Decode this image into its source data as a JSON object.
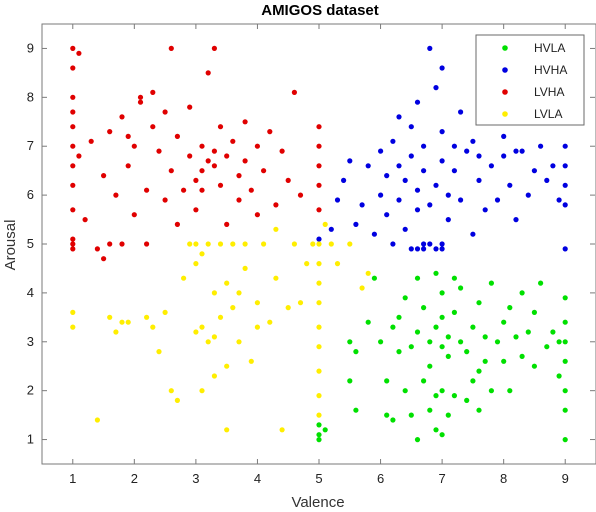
{
  "chart_data": {
    "type": "scatter",
    "title": "AMIGOS dataset",
    "xlabel": "Valence",
    "ylabel": "Arousal",
    "xlim": [
      0.5,
      9.5
    ],
    "ylim": [
      0.5,
      9.5
    ],
    "xticks": [
      "1",
      "2",
      "3",
      "4",
      "5",
      "6",
      "7",
      "8",
      "9"
    ],
    "yticks": [
      "1",
      "2",
      "3",
      "4",
      "5",
      "6",
      "7",
      "8",
      "9"
    ],
    "grid": false,
    "legend_position": "top-right",
    "series": [
      {
        "name": "HVLA",
        "color": "#00e000",
        "points": [
          [
            5.0,
            1.0
          ],
          [
            5.0,
            1.1
          ],
          [
            5.0,
            1.3
          ],
          [
            5.1,
            1.2
          ],
          [
            5.5,
            2.2
          ],
          [
            5.6,
            1.6
          ],
          [
            5.8,
            3.4
          ],
          [
            5.9,
            4.3
          ],
          [
            5.5,
            3.0
          ],
          [
            5.6,
            2.8
          ],
          [
            6.0,
            3.0
          ],
          [
            6.1,
            2.2
          ],
          [
            6.1,
            1.5
          ],
          [
            6.2,
            1.4
          ],
          [
            6.3,
            2.8
          ],
          [
            6.3,
            3.5
          ],
          [
            6.4,
            3.9
          ],
          [
            6.5,
            1.5
          ],
          [
            6.5,
            2.9
          ],
          [
            6.6,
            1.0
          ],
          [
            6.6,
            3.2
          ],
          [
            6.7,
            2.2
          ],
          [
            6.7,
            3.7
          ],
          [
            6.8,
            1.6
          ],
          [
            6.8,
            2.5
          ],
          [
            6.8,
            3.0
          ],
          [
            6.9,
            1.2
          ],
          [
            6.9,
            1.9
          ],
          [
            6.9,
            3.3
          ],
          [
            7.0,
            2.0
          ],
          [
            7.0,
            2.9
          ],
          [
            7.0,
            3.5
          ],
          [
            7.0,
            4.0
          ],
          [
            7.1,
            1.5
          ],
          [
            7.1,
            2.7
          ],
          [
            7.1,
            3.1
          ],
          [
            7.2,
            1.9
          ],
          [
            7.2,
            3.6
          ],
          [
            7.3,
            3.0
          ],
          [
            7.3,
            4.1
          ],
          [
            7.4,
            1.8
          ],
          [
            7.4,
            2.8
          ],
          [
            7.5,
            3.3
          ],
          [
            7.5,
            2.2
          ],
          [
            7.6,
            3.8
          ],
          [
            7.6,
            1.6
          ],
          [
            7.7,
            2.6
          ],
          [
            7.7,
            3.1
          ],
          [
            7.8,
            4.2
          ],
          [
            7.8,
            2.0
          ],
          [
            7.9,
            3.0
          ],
          [
            8.0,
            2.6
          ],
          [
            8.0,
            3.4
          ],
          [
            8.1,
            2.0
          ],
          [
            8.1,
            3.7
          ],
          [
            8.2,
            3.1
          ],
          [
            8.3,
            2.7
          ],
          [
            8.3,
            4.0
          ],
          [
            8.4,
            3.2
          ],
          [
            8.5,
            2.5
          ],
          [
            8.5,
            3.6
          ],
          [
            8.6,
            4.2
          ],
          [
            8.7,
            2.9
          ],
          [
            8.8,
            3.2
          ],
          [
            8.9,
            3.0
          ],
          [
            8.9,
            2.3
          ],
          [
            9.0,
            1.0
          ],
          [
            9.0,
            1.6
          ],
          [
            9.0,
            2.0
          ],
          [
            9.0,
            2.6
          ],
          [
            9.0,
            3.0
          ],
          [
            9.0,
            3.4
          ],
          [
            9.0,
            3.9
          ],
          [
            6.2,
            3.3
          ],
          [
            6.6,
            4.3
          ],
          [
            6.9,
            4.4
          ],
          [
            7.2,
            4.3
          ],
          [
            6.4,
            2.0
          ],
          [
            7.0,
            1.1
          ],
          [
            7.6,
            2.4
          ]
        ]
      },
      {
        "name": "HVHA",
        "color": "#0000e0",
        "points": [
          [
            5.0,
            5.1
          ],
          [
            5.2,
            5.3
          ],
          [
            5.3,
            5.9
          ],
          [
            5.4,
            6.3
          ],
          [
            5.5,
            6.7
          ],
          [
            5.6,
            5.4
          ],
          [
            5.7,
            5.8
          ],
          [
            5.8,
            6.6
          ],
          [
            5.9,
            5.2
          ],
          [
            6.0,
            6.0
          ],
          [
            6.0,
            6.9
          ],
          [
            6.1,
            5.6
          ],
          [
            6.1,
            6.4
          ],
          [
            6.2,
            5.0
          ],
          [
            6.2,
            7.1
          ],
          [
            6.3,
            5.9
          ],
          [
            6.3,
            7.6
          ],
          [
            6.4,
            6.3
          ],
          [
            6.4,
            5.3
          ],
          [
            6.5,
            6.8
          ],
          [
            6.5,
            7.4
          ],
          [
            6.6,
            5.7
          ],
          [
            6.6,
            6.1
          ],
          [
            6.7,
            5.0
          ],
          [
            6.7,
            7.0
          ],
          [
            6.7,
            6.5
          ],
          [
            6.8,
            5.0
          ],
          [
            6.8,
            5.8
          ],
          [
            6.8,
            9.0
          ],
          [
            6.9,
            4.9
          ],
          [
            6.9,
            6.2
          ],
          [
            6.9,
            8.2
          ],
          [
            7.0,
            5.0
          ],
          [
            7.0,
            6.7
          ],
          [
            7.0,
            8.6
          ],
          [
            7.0,
            7.3
          ],
          [
            7.1,
            5.5
          ],
          [
            7.1,
            6.0
          ],
          [
            7.2,
            6.5
          ],
          [
            7.3,
            7.7
          ],
          [
            7.3,
            5.9
          ],
          [
            7.4,
            6.9
          ],
          [
            7.5,
            5.2
          ],
          [
            7.5,
            7.1
          ],
          [
            7.6,
            6.3
          ],
          [
            7.7,
            5.7
          ],
          [
            7.7,
            7.5
          ],
          [
            7.8,
            6.6
          ],
          [
            7.9,
            5.9
          ],
          [
            8.0,
            6.8
          ],
          [
            8.0,
            7.2
          ],
          [
            8.1,
            6.2
          ],
          [
            8.2,
            5.5
          ],
          [
            8.3,
            6.9
          ],
          [
            8.4,
            6.0
          ],
          [
            8.5,
            6.5
          ],
          [
            8.6,
            7.0
          ],
          [
            8.7,
            6.3
          ],
          [
            8.8,
            6.6
          ],
          [
            9.0,
            4.9
          ],
          [
            9.0,
            5.8
          ],
          [
            9.0,
            6.2
          ],
          [
            9.0,
            6.6
          ],
          [
            9.0,
            7.0
          ],
          [
            8.9,
            5.9
          ],
          [
            6.5,
            4.9
          ],
          [
            6.6,
            4.9
          ],
          [
            6.7,
            4.9
          ],
          [
            7.0,
            4.9
          ],
          [
            6.3,
            6.6
          ],
          [
            6.6,
            7.9
          ],
          [
            7.2,
            7.0
          ],
          [
            7.6,
            6.8
          ],
          [
            8.2,
            6.9
          ]
        ]
      },
      {
        "name": "LVHA",
        "color": "#e00000",
        "points": [
          [
            1.0,
            4.9
          ],
          [
            1.0,
            5.0
          ],
          [
            1.0,
            5.1
          ],
          [
            1.0,
            5.7
          ],
          [
            1.0,
            6.2
          ],
          [
            1.0,
            6.6
          ],
          [
            1.0,
            7.0
          ],
          [
            1.0,
            7.4
          ],
          [
            1.0,
            7.7
          ],
          [
            1.0,
            8.0
          ],
          [
            1.0,
            8.6
          ],
          [
            1.0,
            9.0
          ],
          [
            1.1,
            8.9
          ],
          [
            1.1,
            6.8
          ],
          [
            1.2,
            5.5
          ],
          [
            1.3,
            7.1
          ],
          [
            1.4,
            4.9
          ],
          [
            1.5,
            6.4
          ],
          [
            1.5,
            4.7
          ],
          [
            1.6,
            7.3
          ],
          [
            1.6,
            5.0
          ],
          [
            1.7,
            6.0
          ],
          [
            1.8,
            7.6
          ],
          [
            1.8,
            5.0
          ],
          [
            1.9,
            6.6
          ],
          [
            2.0,
            7.0
          ],
          [
            2.0,
            5.6
          ],
          [
            2.1,
            7.9
          ],
          [
            2.2,
            6.1
          ],
          [
            2.2,
            5.0
          ],
          [
            2.3,
            7.4
          ],
          [
            2.3,
            8.1
          ],
          [
            2.4,
            6.9
          ],
          [
            2.5,
            5.9
          ],
          [
            2.5,
            7.7
          ],
          [
            2.6,
            6.5
          ],
          [
            2.6,
            9.0
          ],
          [
            2.7,
            7.2
          ],
          [
            2.7,
            5.4
          ],
          [
            2.8,
            6.1
          ],
          [
            2.9,
            7.8
          ],
          [
            2.9,
            6.8
          ],
          [
            3.0,
            6.3
          ],
          [
            3.0,
            5.7
          ],
          [
            3.1,
            7.0
          ],
          [
            3.1,
            6.5
          ],
          [
            3.2,
            6.7
          ],
          [
            3.2,
            8.5
          ],
          [
            3.3,
            9.0
          ],
          [
            3.3,
            6.6
          ],
          [
            3.4,
            6.2
          ],
          [
            3.4,
            7.4
          ],
          [
            3.5,
            6.8
          ],
          [
            3.5,
            5.4
          ],
          [
            3.6,
            7.1
          ],
          [
            3.7,
            6.4
          ],
          [
            3.7,
            5.9
          ],
          [
            3.8,
            7.5
          ],
          [
            3.8,
            6.7
          ],
          [
            3.9,
            6.1
          ],
          [
            4.0,
            7.0
          ],
          [
            4.0,
            5.6
          ],
          [
            4.1,
            6.5
          ],
          [
            4.2,
            7.3
          ],
          [
            4.3,
            5.8
          ],
          [
            4.4,
            6.9
          ],
          [
            4.5,
            6.3
          ],
          [
            4.6,
            8.1
          ],
          [
            4.7,
            6.0
          ],
          [
            5.0,
            5.7
          ],
          [
            5.0,
            6.2
          ],
          [
            5.0,
            6.6
          ],
          [
            5.0,
            7.0
          ],
          [
            5.0,
            7.4
          ],
          [
            3.3,
            6.9
          ],
          [
            3.1,
            6.1
          ],
          [
            2.1,
            8.0
          ],
          [
            1.9,
            7.2
          ]
        ]
      },
      {
        "name": "LVLA",
        "color": "#ffee00",
        "points": [
          [
            1.0,
            3.3
          ],
          [
            1.0,
            3.6
          ],
          [
            1.4,
            1.4
          ],
          [
            1.6,
            3.5
          ],
          [
            1.7,
            3.2
          ],
          [
            1.8,
            3.4
          ],
          [
            1.9,
            3.4
          ],
          [
            2.2,
            3.5
          ],
          [
            2.3,
            3.3
          ],
          [
            2.4,
            2.8
          ],
          [
            2.5,
            3.6
          ],
          [
            2.6,
            2.0
          ],
          [
            2.7,
            1.8
          ],
          [
            2.8,
            4.3
          ],
          [
            3.0,
            5.0
          ],
          [
            3.0,
            4.6
          ],
          [
            3.1,
            3.3
          ],
          [
            3.1,
            2.0
          ],
          [
            3.2,
            5.0
          ],
          [
            3.2,
            3.0
          ],
          [
            3.3,
            4.0
          ],
          [
            3.3,
            2.3
          ],
          [
            3.4,
            5.0
          ],
          [
            3.4,
            3.5
          ],
          [
            3.5,
            1.2
          ],
          [
            3.5,
            4.2
          ],
          [
            3.6,
            5.0
          ],
          [
            3.7,
            3.0
          ],
          [
            3.8,
            5.0
          ],
          [
            3.9,
            2.6
          ],
          [
            4.0,
            3.8
          ],
          [
            4.1,
            5.0
          ],
          [
            4.2,
            3.4
          ],
          [
            4.3,
            5.3
          ],
          [
            4.4,
            1.2
          ],
          [
            4.5,
            3.7
          ],
          [
            4.6,
            5.0
          ],
          [
            4.7,
            3.8
          ],
          [
            4.8,
            4.6
          ],
          [
            4.9,
            5.0
          ],
          [
            5.0,
            1.5
          ],
          [
            5.0,
            1.9
          ],
          [
            5.0,
            2.4
          ],
          [
            5.0,
            2.9
          ],
          [
            5.0,
            3.3
          ],
          [
            5.0,
            3.8
          ],
          [
            5.0,
            4.2
          ],
          [
            5.0,
            4.6
          ],
          [
            5.0,
            5.0
          ],
          [
            5.1,
            5.4
          ],
          [
            5.2,
            5.0
          ],
          [
            5.3,
            4.6
          ],
          [
            5.5,
            5.0
          ],
          [
            5.7,
            4.1
          ],
          [
            5.8,
            4.4
          ],
          [
            3.0,
            3.2
          ],
          [
            3.3,
            3.1
          ],
          [
            3.5,
            2.5
          ],
          [
            4.0,
            3.3
          ],
          [
            3.8,
            4.5
          ],
          [
            3.6,
            3.7
          ],
          [
            2.9,
            5.0
          ],
          [
            3.1,
            4.8
          ],
          [
            3.7,
            4.0
          ],
          [
            4.3,
            4.3
          ]
        ]
      }
    ]
  }
}
